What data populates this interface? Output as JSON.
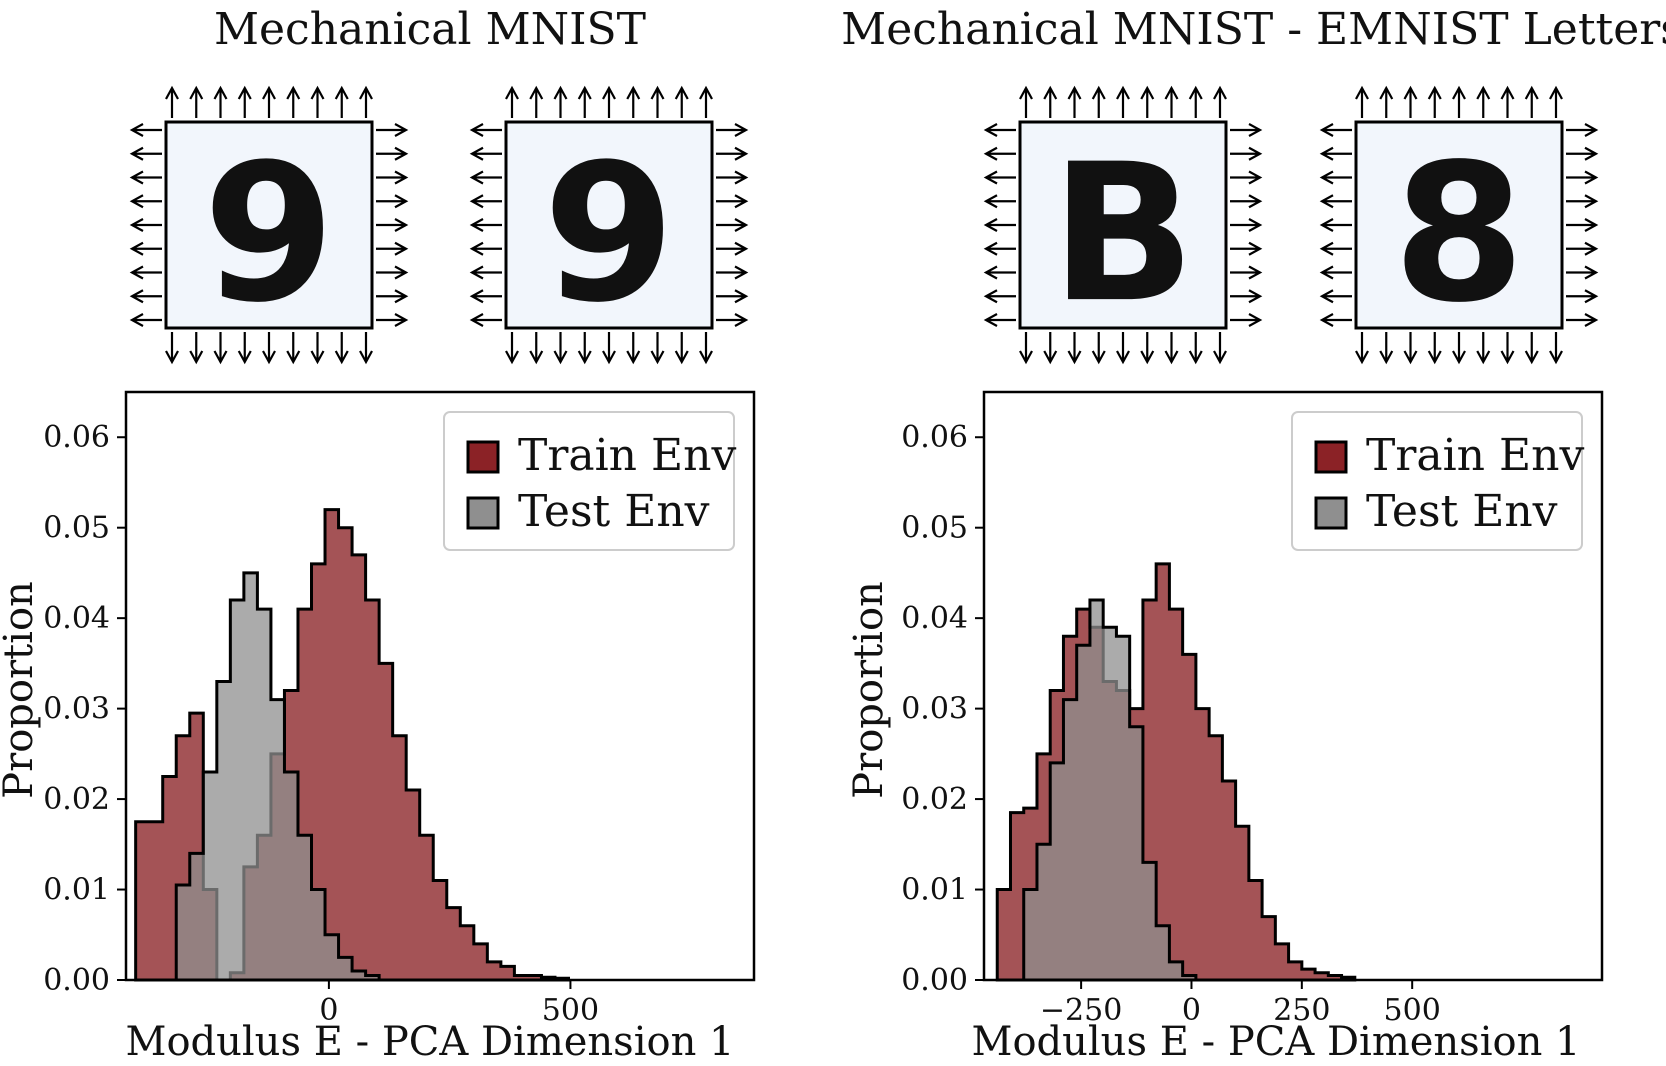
{
  "chart_data": [
    {
      "type": "histogram",
      "title": "Mechanical MNIST",
      "xlabel": "Modulus E - PCA Dimension 1",
      "ylabel": "Proportion",
      "xlim": [
        -420,
        880
      ],
      "ylim": [
        0,
        0.065
      ],
      "xticks": [
        0,
        500
      ],
      "xtick_labels": [
        "0",
        "500"
      ],
      "yticks": [
        0,
        0.01,
        0.02,
        0.03,
        0.04,
        0.05,
        0.06
      ],
      "ytick_labels": [
        "0.00",
        "0.01",
        "0.02",
        "0.03",
        "0.04",
        "0.05",
        "0.06"
      ],
      "legend_position": "top-right",
      "grid": false,
      "images": [
        {
          "glyph": "9",
          "tone": "dark"
        },
        {
          "glyph": "9",
          "tone": "light"
        }
      ],
      "series": [
        {
          "name": "Train Env",
          "color": "#8b2226",
          "bin_start": -400,
          "bin_width": 28,
          "values": [
            0.0175,
            0.0175,
            0.0225,
            0.027,
            0.0295,
            0.01,
            0.0,
            0.0008,
            0.0125,
            0.016,
            0.025,
            0.032,
            0.041,
            0.046,
            0.052,
            0.05,
            0.047,
            0.042,
            0.035,
            0.027,
            0.021,
            0.016,
            0.011,
            0.008,
            0.006,
            0.004,
            0.002,
            0.0015,
            0.0005,
            0.0005,
            0.0003,
            0.0002
          ]
        },
        {
          "name": "Test Env",
          "color": "#8f8f8f",
          "bin_start": -316,
          "bin_width": 28,
          "values": [
            0.0105,
            0.014,
            0.023,
            0.033,
            0.042,
            0.045,
            0.041,
            0.031,
            0.023,
            0.016,
            0.01,
            0.005,
            0.0025,
            0.001,
            0.0005
          ]
        }
      ]
    },
    {
      "type": "histogram",
      "title": "Mechanical MNIST - EMNIST Letters",
      "xlabel": "Modulus E - PCA Dimension 1",
      "ylabel": "Proportion",
      "xlim": [
        -470,
        930
      ],
      "ylim": [
        0,
        0.065
      ],
      "xticks": [
        -250,
        0,
        250,
        500
      ],
      "xtick_labels": [
        "−250",
        "0",
        "250",
        "500"
      ],
      "yticks": [
        0,
        0.01,
        0.02,
        0.03,
        0.04,
        0.05,
        0.06
      ],
      "ytick_labels": [
        "0.00",
        "0.01",
        "0.02",
        "0.03",
        "0.04",
        "0.05",
        "0.06"
      ],
      "legend_position": "top-right",
      "grid": false,
      "images": [
        {
          "glyph": "B",
          "tone": "dark"
        },
        {
          "glyph": "8",
          "tone": "light"
        }
      ],
      "series": [
        {
          "name": "Train Env",
          "color": "#8b2226",
          "bin_start": -440,
          "bin_width": 30,
          "values": [
            0.01,
            0.0185,
            0.019,
            0.025,
            0.032,
            0.038,
            0.041,
            0.039,
            0.033,
            0.032,
            0.03,
            0.042,
            0.046,
            0.041,
            0.036,
            0.03,
            0.027,
            0.022,
            0.017,
            0.011,
            0.007,
            0.004,
            0.002,
            0.0012,
            0.0008,
            0.0005,
            0.0003
          ]
        },
        {
          "name": "Test Env",
          "color": "#8f8f8f",
          "bin_start": -380,
          "bin_width": 30,
          "values": [
            0.01,
            0.015,
            0.024,
            0.031,
            0.037,
            0.042,
            0.039,
            0.038,
            0.028,
            0.013,
            0.006,
            0.002,
            0.0005
          ]
        }
      ]
    }
  ]
}
